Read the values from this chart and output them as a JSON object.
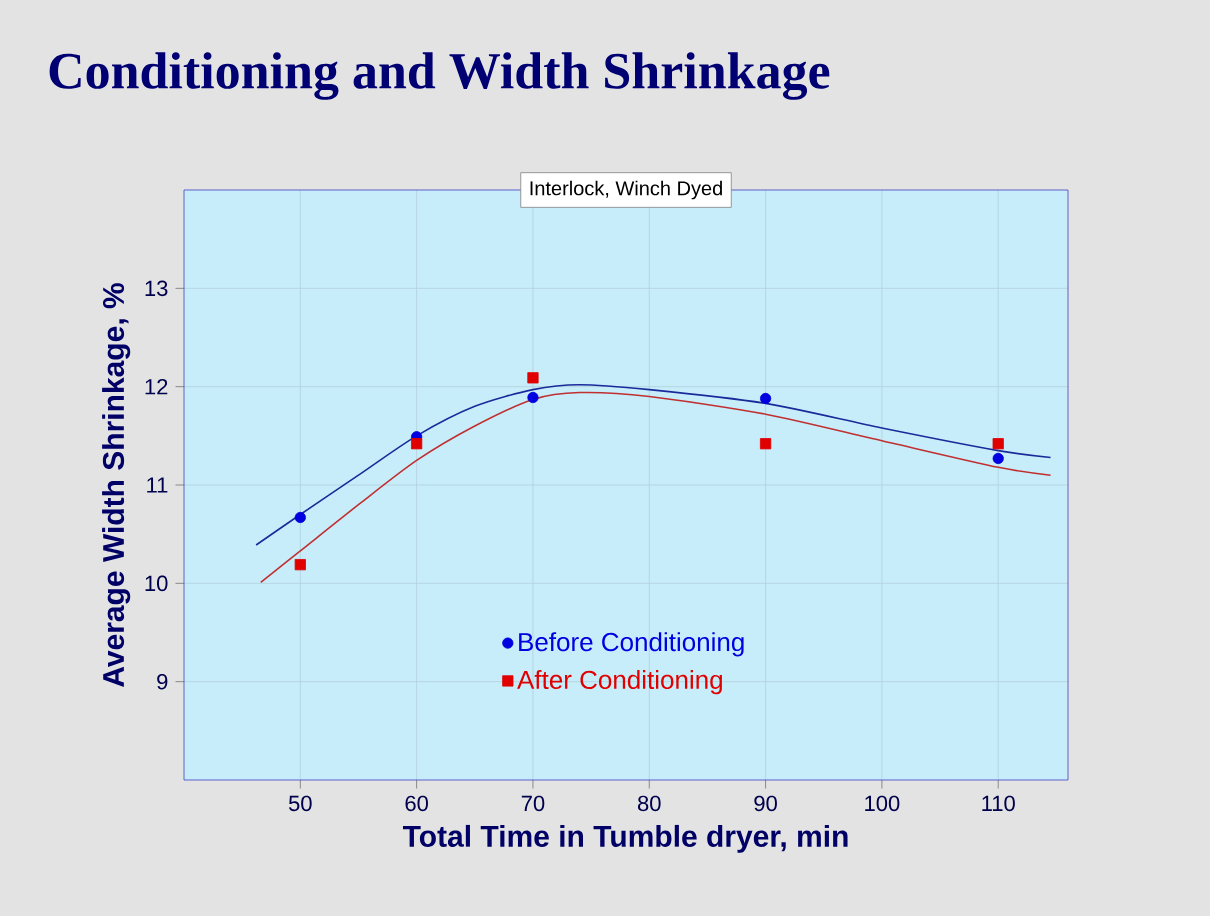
{
  "chart_data": {
    "type": "scatter",
    "title": "Conditioning and Width Shrinkage",
    "subtitle": "Interlock, Winch Dyed",
    "xlabel": "Total Time in Tumble dryer,  min",
    "ylabel": "Average Width Shrinkage,  %",
    "xlim": [
      40,
      116
    ],
    "ylim": [
      8,
      14
    ],
    "xticks": [
      50,
      60,
      70,
      80,
      90,
      100,
      110
    ],
    "yticks": [
      9,
      10,
      11,
      12,
      13
    ],
    "grid": true,
    "legend": "bottom",
    "series": [
      {
        "name": "Before Conditioning",
        "color": "#0000e0",
        "marker": "circle",
        "x": [
          50,
          60,
          70,
          90,
          110
        ],
        "values": [
          10.67,
          11.49,
          11.89,
          11.88,
          11.27
        ]
      },
      {
        "name": "After Conditioning",
        "color": "#e00000",
        "marker": "square",
        "x": [
          50,
          60,
          70,
          90,
          110
        ],
        "values": [
          10.19,
          11.42,
          12.09,
          11.42,
          11.42
        ]
      },
      {
        "type": "line",
        "color": "#1a2a9a",
        "marker": "none",
        "x": [
          46.2,
          50,
          55,
          60,
          65,
          70,
          74,
          80,
          90,
          100,
          110,
          114.5
        ],
        "values": [
          10.39,
          10.7,
          11.1,
          11.5,
          11.8,
          11.97,
          12.02,
          11.97,
          11.83,
          11.58,
          11.35,
          11.28
        ]
      },
      {
        "type": "line",
        "color": "#c03030",
        "marker": "none",
        "x": [
          46.6,
          50,
          55,
          60,
          65,
          70,
          74,
          80,
          90,
          100,
          110,
          114.5
        ],
        "values": [
          10.01,
          10.33,
          10.8,
          11.25,
          11.6,
          11.87,
          11.94,
          11.9,
          11.72,
          11.45,
          11.18,
          11.1
        ]
      }
    ]
  }
}
